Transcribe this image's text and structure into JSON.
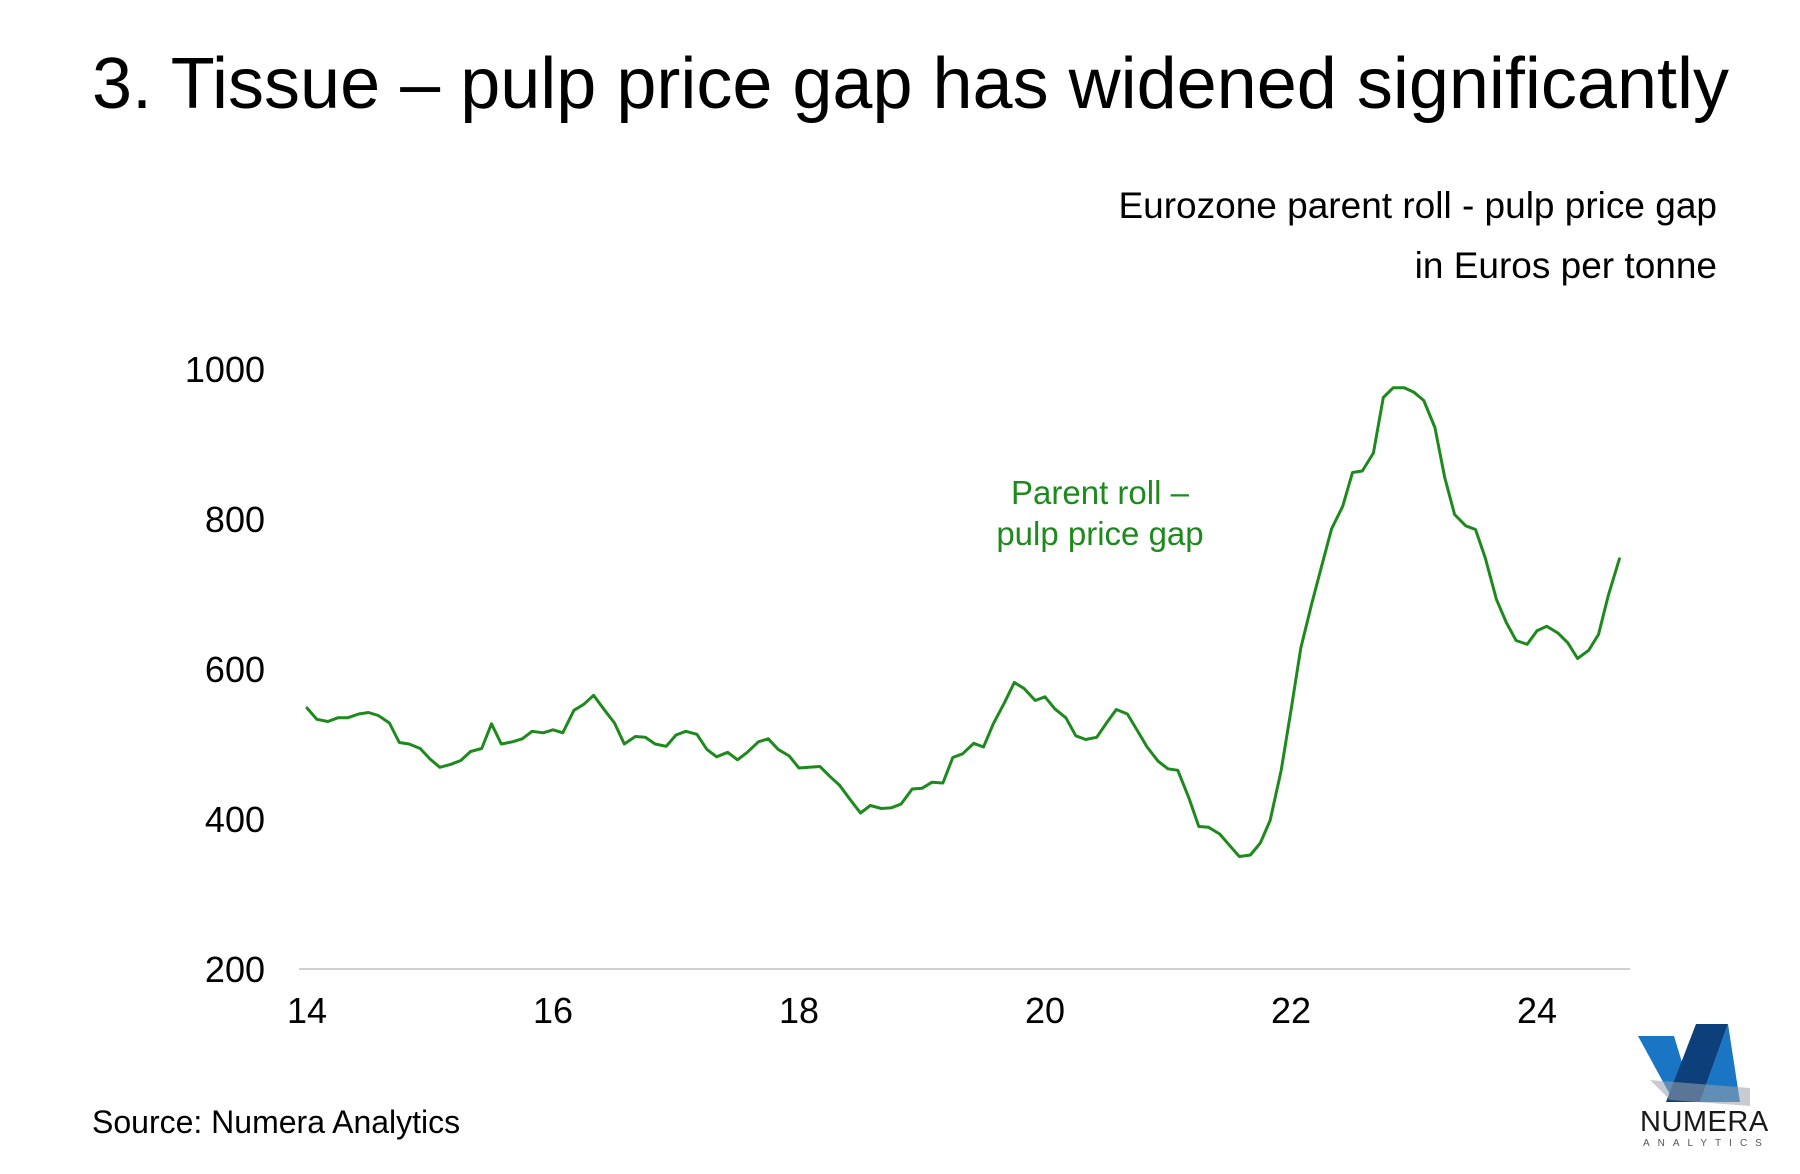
{
  "title": "3. Tissue – pulp price gap has widened significantly",
  "subtitle_line1": "Eurozone parent roll - pulp price gap",
  "subtitle_line2": "in Euros per tonne",
  "source": "Source: Numera Analytics",
  "logo": {
    "wordmark": "NUMERA",
    "tagline": "ANALYTICS",
    "colors": [
      "#1a75c4",
      "#0d3f7a",
      "#9aa3ad"
    ]
  },
  "chart_data": {
    "type": "line",
    "title": "",
    "xlabel": "",
    "ylabel": "",
    "xlim": [
      14,
      24.8
    ],
    "ylim": [
      200,
      1000
    ],
    "yticks": [
      200,
      400,
      600,
      800,
      1000
    ],
    "xticks": [
      14,
      16,
      18,
      20,
      22,
      24
    ],
    "ytick_labels": [
      "200",
      "400",
      "600",
      "800",
      "1000"
    ],
    "xtick_labels": [
      "14",
      "16",
      "18",
      "20",
      "22",
      "24"
    ],
    "grid": false,
    "annotation_line1": "Parent roll –",
    "annotation_line2": "pulp price gap",
    "series": [
      {
        "color": "#1e8a1e",
        "points": [
          [
            14.0,
            548
          ],
          [
            14.08,
            533
          ],
          [
            14.17,
            530
          ],
          [
            14.25,
            535
          ],
          [
            14.33,
            535
          ],
          [
            14.42,
            540
          ],
          [
            14.5,
            542
          ],
          [
            14.58,
            538
          ],
          [
            14.67,
            528
          ],
          [
            14.75,
            502
          ],
          [
            14.83,
            500
          ],
          [
            14.92,
            494
          ],
          [
            15.0,
            480
          ],
          [
            15.08,
            469
          ],
          [
            15.17,
            473
          ],
          [
            15.25,
            478
          ],
          [
            15.33,
            490
          ],
          [
            15.42,
            494
          ],
          [
            15.5,
            527
          ],
          [
            15.58,
            500
          ],
          [
            15.67,
            503
          ],
          [
            15.75,
            507
          ],
          [
            15.83,
            517
          ],
          [
            15.92,
            515
          ],
          [
            16.0,
            519
          ],
          [
            16.08,
            515
          ],
          [
            16.17,
            545
          ],
          [
            16.25,
            553
          ],
          [
            16.33,
            565
          ],
          [
            16.42,
            545
          ],
          [
            16.5,
            528
          ],
          [
            16.58,
            500
          ],
          [
            16.67,
            510
          ],
          [
            16.75,
            509
          ],
          [
            16.83,
            500
          ],
          [
            16.92,
            497
          ],
          [
            17.0,
            512
          ],
          [
            17.08,
            517
          ],
          [
            17.17,
            513
          ],
          [
            17.25,
            493
          ],
          [
            17.33,
            483
          ],
          [
            17.42,
            489
          ],
          [
            17.5,
            479
          ],
          [
            17.58,
            489
          ],
          [
            17.67,
            503
          ],
          [
            17.75,
            507
          ],
          [
            17.83,
            493
          ],
          [
            17.92,
            484
          ],
          [
            18.0,
            468
          ],
          [
            18.08,
            469
          ],
          [
            18.17,
            470
          ],
          [
            18.25,
            457
          ],
          [
            18.33,
            445
          ],
          [
            18.42,
            425
          ],
          [
            18.5,
            408
          ],
          [
            18.58,
            418
          ],
          [
            18.67,
            414
          ],
          [
            18.75,
            415
          ],
          [
            18.83,
            420
          ],
          [
            18.92,
            440
          ],
          [
            19.0,
            441
          ],
          [
            19.08,
            449
          ],
          [
            19.17,
            448
          ],
          [
            19.25,
            482
          ],
          [
            19.33,
            487
          ],
          [
            19.42,
            501
          ],
          [
            19.5,
            496
          ],
          [
            19.58,
            527
          ],
          [
            19.67,
            555
          ],
          [
            19.75,
            582
          ],
          [
            19.83,
            574
          ],
          [
            19.92,
            558
          ],
          [
            20.0,
            563
          ],
          [
            20.08,
            547
          ],
          [
            20.17,
            535
          ],
          [
            20.25,
            511
          ],
          [
            20.33,
            506
          ],
          [
            20.42,
            509
          ],
          [
            20.5,
            528
          ],
          [
            20.58,
            546
          ],
          [
            20.67,
            540
          ],
          [
            20.75,
            518
          ],
          [
            20.83,
            496
          ],
          [
            20.92,
            477
          ],
          [
            21.0,
            467
          ],
          [
            21.08,
            465
          ],
          [
            21.17,
            428
          ],
          [
            21.25,
            390
          ],
          [
            21.33,
            389
          ],
          [
            21.42,
            380
          ],
          [
            21.5,
            365
          ],
          [
            21.58,
            350
          ],
          [
            21.67,
            352
          ],
          [
            21.75,
            368
          ],
          [
            21.83,
            398
          ],
          [
            21.92,
            465
          ],
          [
            22.0,
            545
          ],
          [
            22.08,
            628
          ],
          [
            22.17,
            688
          ],
          [
            22.25,
            738
          ],
          [
            22.33,
            787
          ],
          [
            22.42,
            817
          ],
          [
            22.5,
            862
          ],
          [
            22.58,
            864
          ],
          [
            22.67,
            888
          ],
          [
            22.75,
            962
          ],
          [
            22.83,
            975
          ],
          [
            22.92,
            975
          ],
          [
            23.0,
            969
          ],
          [
            23.08,
            958
          ],
          [
            23.17,
            922
          ],
          [
            23.25,
            855
          ],
          [
            23.33,
            806
          ],
          [
            23.42,
            791
          ],
          [
            23.5,
            786
          ],
          [
            23.58,
            748
          ],
          [
            23.67,
            693
          ],
          [
            23.75,
            662
          ],
          [
            23.83,
            638
          ],
          [
            23.92,
            633
          ],
          [
            24.0,
            651
          ],
          [
            24.08,
            657
          ],
          [
            24.17,
            648
          ],
          [
            24.25,
            635
          ],
          [
            24.33,
            614
          ],
          [
            24.42,
            625
          ],
          [
            24.5,
            646
          ],
          [
            24.58,
            698
          ],
          [
            24.67,
            747
          ]
        ]
      }
    ]
  }
}
